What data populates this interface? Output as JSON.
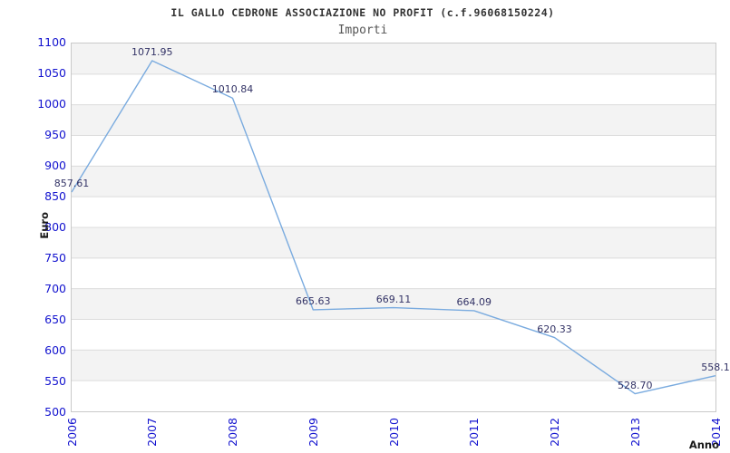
{
  "header": {
    "title": "IL GALLO CEDRONE ASSOCIAZIONE NO PROFIT (c.f.96068150224)",
    "subtitle": "Importi"
  },
  "chart_data": {
    "type": "line",
    "title": "IL GALLO CEDRONE ASSOCIAZIONE NO PROFIT (c.f.96068150224)",
    "subtitle": "Importi",
    "xlabel": "Anno",
    "ylabel": "Euro",
    "categories": [
      "2006",
      "2007",
      "2008",
      "2009",
      "2010",
      "2011",
      "2012",
      "2013",
      "2014"
    ],
    "values": [
      857.61,
      1071.95,
      1010.84,
      665.63,
      669.11,
      664.09,
      620.33,
      528.7,
      558.1
    ],
    "point_labels": [
      "857.61",
      "1071.95",
      "1010.84",
      "665.63",
      "669.11",
      "664.09",
      "620.33",
      "528.70",
      "558.1"
    ],
    "ylim": [
      500,
      1100
    ],
    "ytick_step": 50,
    "ytick_labels": [
      "1100",
      "1050",
      "1000",
      "950",
      "900",
      "850",
      "800",
      "750",
      "700",
      "650",
      "600",
      "550",
      "500"
    ],
    "legend": "none",
    "grid": "horizontal-bands-alternating",
    "colors": {
      "line": "#7aabdf",
      "tick_label": "#1313cf",
      "point_label": "#333366",
      "band_gray": "#f3f3f3",
      "band_white": "#ffffff",
      "gridline": "#dcdcdc",
      "plot_border": "#c9c9c9",
      "title": "#333333",
      "subtitle": "#555555",
      "axis_title": "#1a1a1a",
      "background": "#ffffff"
    }
  }
}
